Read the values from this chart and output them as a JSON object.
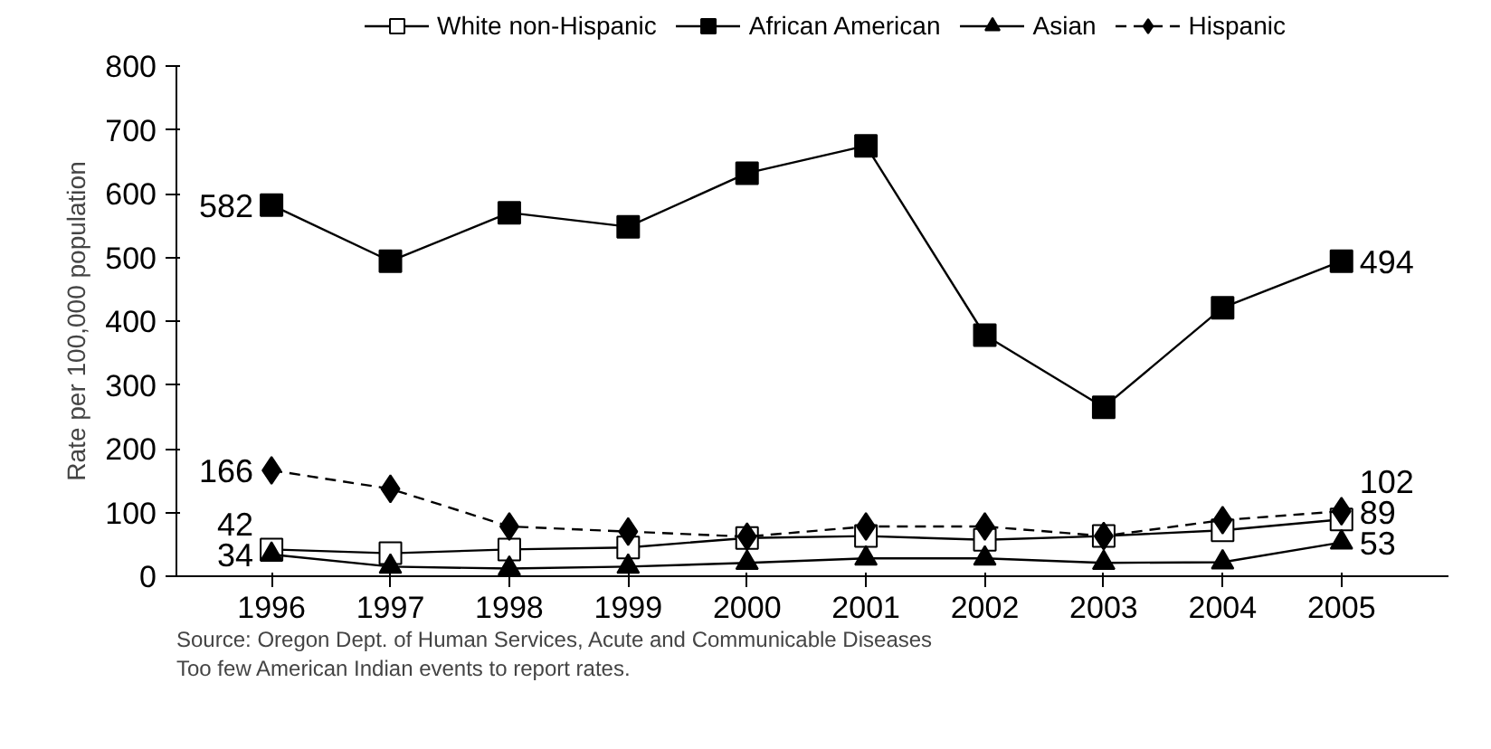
{
  "chart_data": {
    "type": "line",
    "ylabel": "Rate per 100,000 population",
    "categories": [
      "1996",
      "1997",
      "1998",
      "1999",
      "2000",
      "2001",
      "2002",
      "2003",
      "2004",
      "2005"
    ],
    "series": [
      {
        "name": "White non-Hispanic",
        "color": "#ffffff",
        "marker": "square",
        "line_style": "solid",
        "values": [
          42,
          36,
          42,
          45,
          60,
          63,
          57,
          63,
          72,
          89
        ],
        "value_labels": [
          "42",
          null,
          null,
          null,
          null,
          null,
          null,
          null,
          null,
          "89"
        ]
      },
      {
        "name": "African American",
        "color": "#000000",
        "marker": "square",
        "line_style": "solid",
        "values": [
          582,
          494,
          570,
          548,
          632,
          675,
          378,
          265,
          421,
          494
        ],
        "value_labels": [
          "582",
          null,
          null,
          null,
          null,
          null,
          null,
          null,
          null,
          "494"
        ]
      },
      {
        "name": "Asian",
        "color": "#000000",
        "marker": "triangle",
        "line_style": "solid",
        "values": [
          34,
          15,
          12,
          15,
          21,
          28,
          28,
          21,
          22,
          53
        ],
        "value_labels": [
          "34",
          null,
          null,
          null,
          null,
          null,
          null,
          null,
          null,
          "53"
        ]
      },
      {
        "name": "Hispanic",
        "color": "#000000",
        "marker": "diamond",
        "line_style": "dashed",
        "values": [
          166,
          137,
          78,
          70,
          62,
          78,
          78,
          63,
          88,
          102
        ],
        "value_labels": [
          "166",
          null,
          null,
          null,
          null,
          null,
          null,
          null,
          null,
          "102"
        ]
      }
    ],
    "ylim": [
      0,
      800
    ],
    "yticks": [
      0,
      100,
      200,
      300,
      400,
      500,
      600,
      700,
      800
    ],
    "grid": false,
    "legend": "top",
    "annotations": [
      "Source: Oregon Dept. of Human Services, Acute and Communicable Diseases",
      "Too few American Indian events to report rates."
    ]
  }
}
